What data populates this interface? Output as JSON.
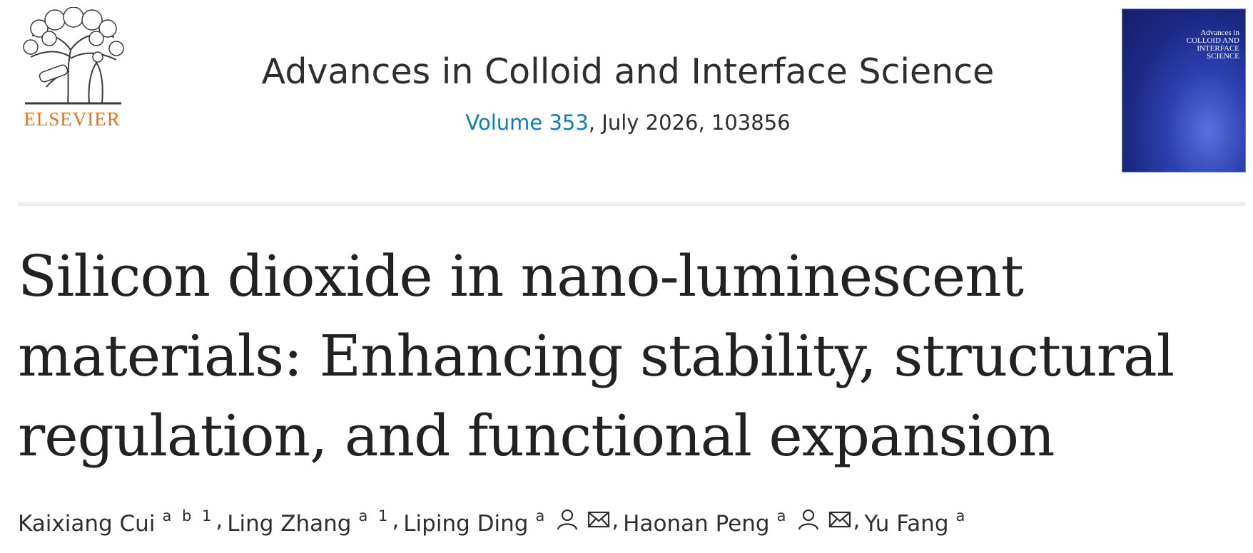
{
  "publisher": {
    "name": "ELSEVIER"
  },
  "journal": {
    "title": "Advances in Colloid and Interface Science",
    "volume_link": "Volume 353",
    "issue_details": ", July 2026, 103856"
  },
  "cover": {
    "lines": [
      "Advances in",
      "COLLOID AND",
      "INTERFACE",
      "SCIENCE"
    ]
  },
  "article": {
    "title_lines": [
      "Silicon dioxide in nano-luminescent",
      "materials: Enhancing stability, structural",
      "regulation, and functional expansion"
    ],
    "author_separator": ",",
    "authors": [
      {
        "name": "Kaixiang Cui",
        "affiliations": "a b 1",
        "corresponding": false
      },
      {
        "name": "Ling Zhang",
        "affiliations": "a 1",
        "corresponding": false
      },
      {
        "name": "Liping Ding",
        "affiliations": "a",
        "corresponding": true
      },
      {
        "name": "Haonan Peng",
        "affiliations": "a",
        "corresponding": true
      },
      {
        "name": "Yu Fang",
        "affiliations": "a",
        "corresponding": false
      }
    ]
  }
}
